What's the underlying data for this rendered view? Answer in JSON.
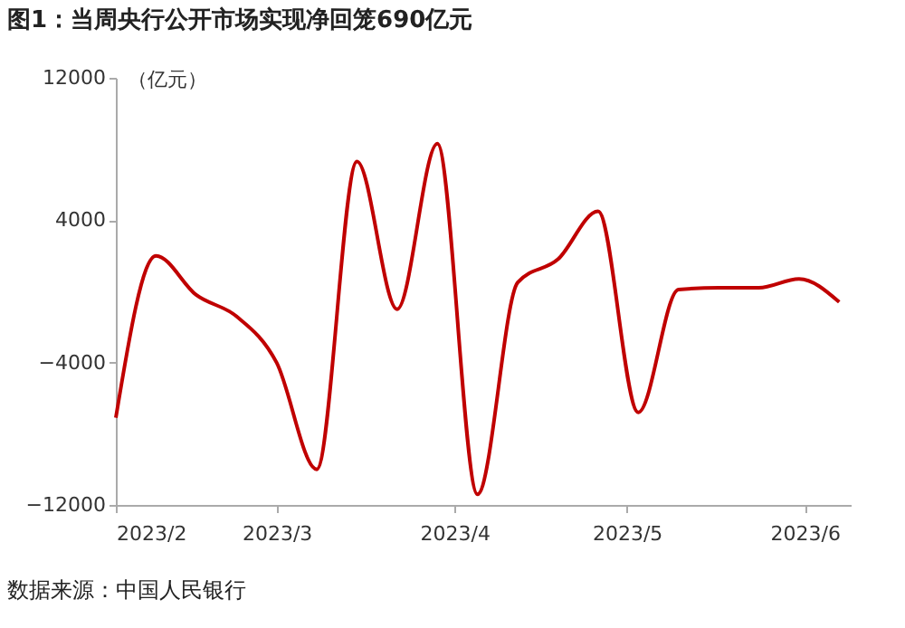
{
  "chart_data": {
    "type": "line",
    "title": "图1：当周央行公开市场实现净回笼690亿元",
    "ylabel": "（亿元）",
    "annotations": [
      "数据来源：中国人民银行"
    ],
    "x": [
      "2023-02-01",
      "2023-02-08",
      "2023-02-15",
      "2023-02-22",
      "2023-03-01",
      "2023-03-08",
      "2023-03-15",
      "2023-03-22",
      "2023-03-29",
      "2023-04-05",
      "2023-04-12",
      "2023-04-19",
      "2023-04-26",
      "2023-05-03",
      "2023-05-10",
      "2023-05-17",
      "2023-05-24",
      "2023-05-31",
      "2023-06-07"
    ],
    "series": [
      {
        "color": "#c00000",
        "values": [
          -7100,
          2000,
          -200,
          -1400,
          -4000,
          -10000,
          7300,
          -1000,
          8300,
          -11400,
          500,
          1800,
          4500,
          -6800,
          100,
          200,
          200,
          700,
          -600
        ]
      }
    ],
    "xlim": [
      "2023-02-01",
      "2023-06-09"
    ],
    "xticks": [
      {
        "value": "2023-02-01",
        "label": "2023/2"
      },
      {
        "value": "2023-03-01",
        "label": "2023/3"
      },
      {
        "value": "2023-04-01",
        "label": "2023/4"
      },
      {
        "value": "2023-05-01",
        "label": "2023/5"
      },
      {
        "value": "2023-06-01",
        "label": "2023/6"
      }
    ],
    "ylim": [
      -12000,
      12000
    ],
    "yticks": [
      -12000,
      -4000,
      4000,
      12000
    ],
    "grid": false,
    "legend": false
  }
}
